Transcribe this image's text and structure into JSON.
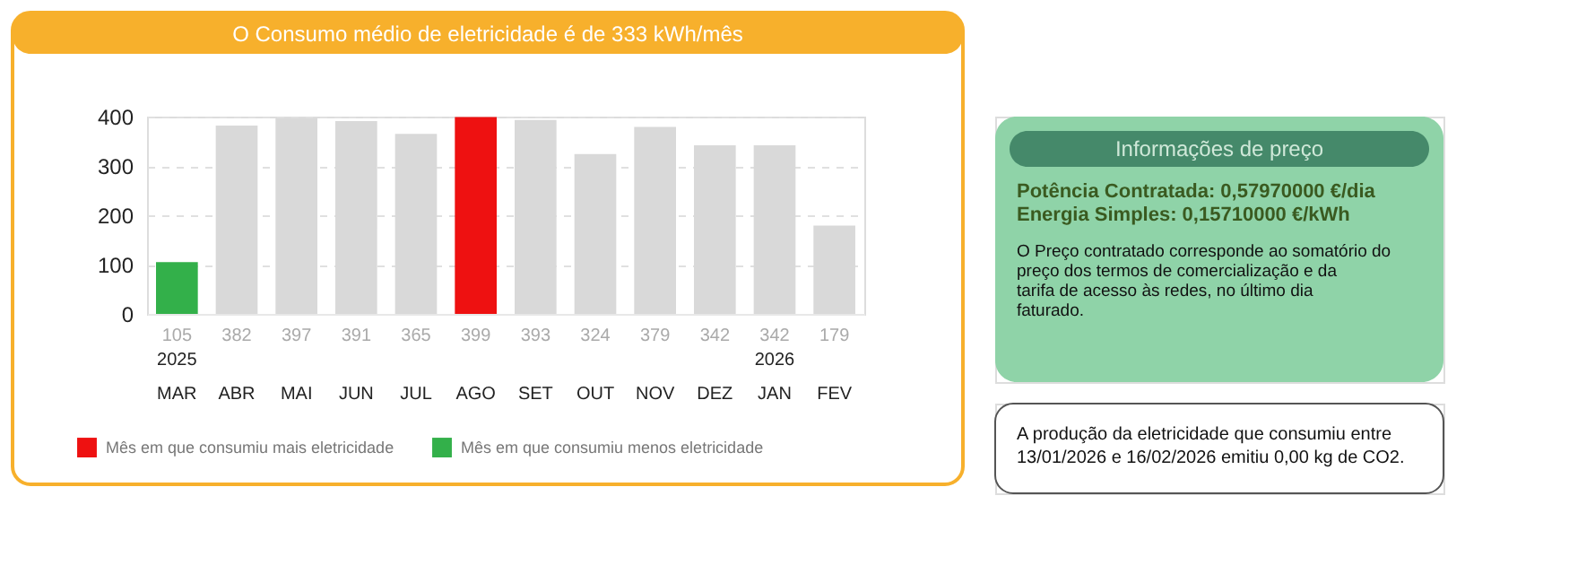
{
  "chart_data": [
    {
      "type": "bar",
      "title": "O Consumo médio de eletricidade é de 333 kWh/mês",
      "categories": [
        "2025 MAR",
        "ABR",
        "MAI",
        "JUN",
        "JUL",
        "AGO",
        "SET",
        "OUT",
        "NOV",
        "DEZ",
        "2026 JAN",
        "FEV"
      ],
      "series": [
        {
          "color": "#d9d9d9",
          "values": [
            null,
            382,
            397,
            391,
            365,
            null,
            393,
            324,
            379,
            342,
            342,
            179
          ]
        },
        {
          "name": "Mês em que consumiu mais eletricidade",
          "color": "#ee1111",
          "values": [
            null,
            null,
            null,
            null,
            null,
            399,
            null,
            null,
            null,
            null,
            null,
            null
          ]
        },
        {
          "name": "Mês em que consumiu menos eletricidade",
          "color": "#33b04a",
          "values": [
            105,
            null,
            null,
            null,
            null,
            null,
            null,
            null,
            null,
            null,
            null,
            null
          ]
        }
      ],
      "ylim": [
        0,
        400
      ],
      "yticks": [
        0,
        100,
        200,
        300,
        400
      ],
      "grid": "y",
      "data_labels": true,
      "legend": "bottom left"
    },
    {
      "type": "other",
      "title": "Informações de preço",
      "annotations": [
        "Potência Contratada: 0,57970000 €/dia",
        "Energia Simples: 0,15710000 €/kWh",
        "O Preço contratado corresponde ao somatório do preço dos termos de comercialização e da tarifa de acesso às redes, no último dia faturado."
      ]
    },
    {
      "type": "other",
      "annotations": [
        "A produção da eletricidade que consumiu entre 13/01/2026 e 16/02/2026 emitiu 0,00 kg de CO2."
      ]
    }
  ]
}
